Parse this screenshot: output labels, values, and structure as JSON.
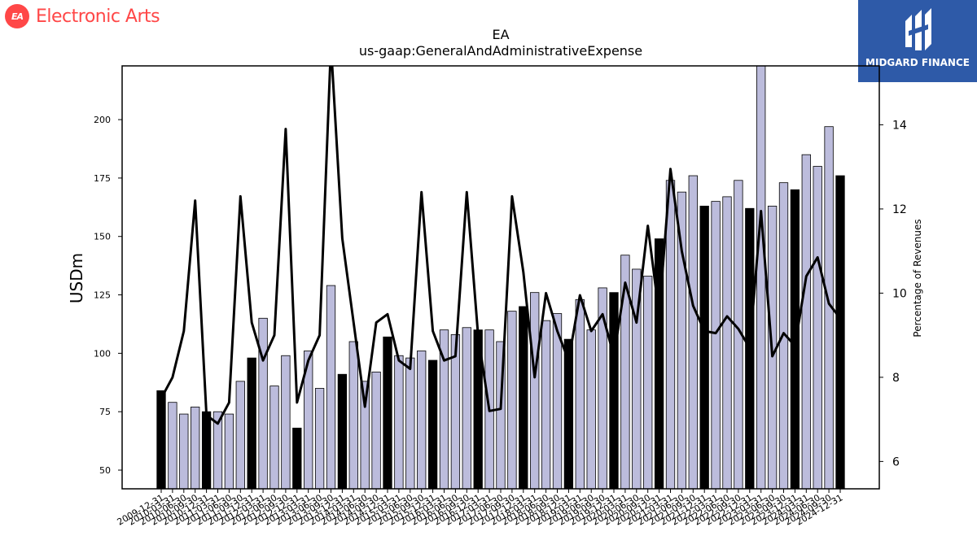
{
  "brand": {
    "name": "Electronic Arts",
    "logo_text": "EA",
    "logo_color": "#ff4747"
  },
  "badge": {
    "text": "MIDGARD FINANCE",
    "color": "#2e5aa8"
  },
  "chart_data": {
    "type": "bar",
    "title": "EA",
    "subtitle": "us-gaap:GeneralAndAdministrativeExpense",
    "ylabel": "USDm",
    "y2label": "Percentage of Revenues",
    "ylim": [
      42,
      223
    ],
    "y2lim": [
      5.35,
      15.4
    ],
    "yticks": [
      50,
      75,
      100,
      125,
      150,
      175,
      200
    ],
    "y2ticks": [
      6,
      8,
      10,
      12,
      14
    ],
    "colors": {
      "annual_bar": "#000000",
      "quarter_bar": "#bcbcdc",
      "line": "#000000"
    },
    "categories": [
      "2009-12-31",
      "2010-03-31",
      "2010-06-30",
      "2010-09-30",
      "2010-12-31",
      "2011-03-31",
      "2011-06-30",
      "2011-09-30",
      "2011-12-31",
      "2012-03-31",
      "2012-06-30",
      "2012-09-30",
      "2012-12-31",
      "2013-03-31",
      "2013-06-30",
      "2013-09-30",
      "2013-12-31",
      "2014-03-31",
      "2014-06-30",
      "2014-09-30",
      "2014-12-31",
      "2015-03-31",
      "2015-06-30",
      "2015-09-30",
      "2015-12-31",
      "2016-03-31",
      "2016-06-30",
      "2016-09-30",
      "2016-12-31",
      "2017-03-31",
      "2017-06-30",
      "2017-09-30",
      "2017-12-31",
      "2018-03-31",
      "2018-06-30",
      "2018-09-30",
      "2018-12-31",
      "2019-03-31",
      "2019-06-30",
      "2019-09-30",
      "2019-12-31",
      "2020-03-31",
      "2020-06-30",
      "2020-09-30",
      "2020-12-31",
      "2021-03-31",
      "2021-06-30",
      "2021-09-30",
      "2021-12-31",
      "2022-03-31",
      "2022-06-30",
      "2022-09-30",
      "2022-12-31",
      "2023-03-31",
      "2023-06-30",
      "2023-09-30",
      "2023-12-31",
      "2024-03-31",
      "2024-06-30",
      "2024-09-30",
      "2024-12-31"
    ],
    "tick_labels": [
      "2009-12-31",
      "2010-03-31",
      "2010-06-30",
      "2010-09-30",
      "2010-12-31",
      "2011-03-31",
      "2011-06-30",
      "2011-09-30",
      "2011-12-31",
      "2012-03-31",
      "2012-06-30",
      "2012-09-30",
      "2012-12-31",
      "2013-03-31",
      "2013-06-30",
      "2013-09-30",
      "2013-12-31",
      "2014-03-31",
      "2014-06-30",
      "2014-09-30",
      "2014-12-31",
      "2015-03-31",
      "2015-06-30",
      "2015-09-30",
      "2015-12-31",
      "2016-03-31",
      "2016-06-30",
      "2016-09-30",
      "2016-12-31",
      "2017-03-31",
      "2017-06-30",
      "2017-09-30",
      "2017-12-31",
      "2018-03-31",
      "2018-06-30",
      "2018-09-30",
      "2018-12-31",
      "2019-03-31",
      "2019-06-30",
      "2019-09-30",
      "2019-12-31",
      "2020-03-31",
      "2020-06-30",
      "2020-09-30",
      "2020-12-31",
      "2021-03-31",
      "2021-06-30",
      "2021-09-30",
      "2021-12-31",
      "2022-03-31",
      "2022-06-30",
      "2022-09-30",
      "2022-12-31",
      "2023-03-31",
      "2023-06-30",
      "2023-09-30",
      "2023-12-31",
      "2024-03-31",
      "2024-06-30",
      "2024-09-30",
      "2024-12-31"
    ],
    "bar_is_annual": [
      true,
      false,
      false,
      false,
      true,
      false,
      false,
      false,
      true,
      false,
      false,
      false,
      true,
      false,
      false,
      false,
      true,
      false,
      false,
      false,
      true,
      false,
      false,
      false,
      true,
      false,
      false,
      false,
      true,
      false,
      false,
      false,
      true,
      false,
      false,
      false,
      true,
      false,
      false,
      false,
      true,
      false,
      false,
      false,
      true,
      false,
      false,
      false,
      true,
      false,
      false,
      false,
      true,
      false,
      false,
      false,
      true,
      false,
      false,
      false,
      true
    ],
    "series": [
      {
        "name": "USDm",
        "values": [
          84,
          79,
          74,
          77,
          75,
          75,
          74,
          88,
          98,
          115,
          86,
          99,
          68,
          101,
          85,
          129,
          91,
          105,
          88,
          92,
          107,
          99,
          98,
          101,
          97,
          110,
          108,
          111,
          110,
          110,
          105,
          118,
          120,
          126,
          114,
          117,
          106,
          123,
          110,
          128,
          126,
          142,
          136,
          133,
          149,
          174,
          169,
          176,
          163,
          165,
          167,
          174,
          162,
          225,
          163,
          173,
          170,
          185,
          180,
          197,
          176
        ]
      },
      {
        "name": "Percentage of Revenues",
        "axis": "right",
        "values": [
          7.5,
          8.0,
          9.1,
          12.2,
          7.1,
          6.9,
          7.4,
          12.3,
          9.3,
          8.4,
          9.0,
          13.9,
          7.4,
          8.4,
          9.0,
          15.9,
          11.3,
          9.3,
          7.3,
          9.3,
          9.5,
          8.4,
          8.2,
          12.4,
          9.1,
          8.4,
          8.5,
          12.4,
          9.0,
          7.2,
          7.25,
          12.3,
          10.5,
          8.0,
          10.0,
          9.1,
          8.4,
          9.95,
          9.1,
          9.5,
          8.5,
          10.25,
          9.3,
          11.6,
          9.5,
          12.95,
          11.0,
          9.7,
          9.1,
          9.05,
          9.45,
          9.15,
          8.7,
          11.95,
          8.5,
          9.05,
          8.75,
          10.4,
          10.85,
          9.75,
          9.4
        ]
      }
    ]
  }
}
